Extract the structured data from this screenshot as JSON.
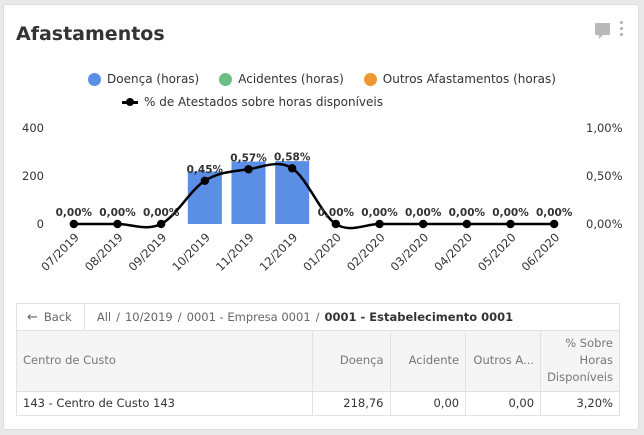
{
  "card": {
    "title": "Afastamentos"
  },
  "legend": {
    "items": [
      {
        "label": "Doença (horas)",
        "color": "#5b8fe6"
      },
      {
        "label": "Acidentes (horas)",
        "color": "#6cbf84"
      },
      {
        "label": "Outros Afastamentos (horas)",
        "color": "#f0982f"
      }
    ],
    "line_label": "% de Atestados sobre horas disponíveis"
  },
  "chart_data": {
    "type": "bar",
    "categories": [
      "07/2019",
      "08/2019",
      "09/2019",
      "10/2019",
      "11/2019",
      "12/2019",
      "01/2020",
      "02/2020",
      "03/2020",
      "04/2020",
      "05/2020",
      "06/2020"
    ],
    "series": [
      {
        "name": "Doença (horas)",
        "type": "bar",
        "color": "#5b8fe6",
        "axis": "left",
        "values": [
          0,
          0,
          0,
          218.76,
          260,
          262,
          0,
          0,
          0,
          0,
          0,
          0
        ]
      },
      {
        "name": "Acidentes (horas)",
        "type": "bar",
        "color": "#6cbf84",
        "axis": "left",
        "values": [
          0,
          0,
          0,
          0,
          0,
          0,
          0,
          0,
          0,
          0,
          0,
          0
        ]
      },
      {
        "name": "Outros Afastamentos (horas)",
        "type": "bar",
        "color": "#f0982f",
        "axis": "left",
        "values": [
          0,
          0,
          0,
          0,
          0,
          0,
          0,
          0,
          0,
          0,
          0,
          0
        ]
      },
      {
        "name": "% de Atestados sobre horas disponíveis",
        "type": "line",
        "color": "#000000",
        "axis": "right",
        "values": [
          0,
          0,
          0,
          0.45,
          0.57,
          0.58,
          0,
          0,
          0,
          0,
          0,
          0
        ],
        "labels": [
          "0,00%",
          "0,00%",
          "0,00%",
          "0,45%",
          "0,57%",
          "0,58%",
          "0,00%",
          "0,00%",
          "0,00%",
          "0,00%",
          "0,00%",
          "0,00%"
        ]
      }
    ],
    "y_left": {
      "ylim": [
        0,
        400
      ],
      "ticks": [
        0,
        200,
        400
      ],
      "tick_labels": [
        "0",
        "200",
        "400"
      ]
    },
    "y_right": {
      "ylim": [
        0,
        1
      ],
      "ticks": [
        0,
        0.5,
        1
      ],
      "tick_labels": [
        "0,00%",
        "0,50%",
        "1,00%"
      ]
    },
    "grid": false,
    "legend_position": "top"
  },
  "table": {
    "back_label": "Back",
    "breadcrumb": [
      "All",
      "10/2019",
      "0001 - Empresa 0001"
    ],
    "breadcrumb_current": "0001 - Estabelecimento 0001",
    "columns": [
      "Centro de Custo",
      "Doença",
      "Acidente",
      "Outros A...",
      "% Sobre Horas Disponíveis"
    ],
    "rows": [
      [
        "143 - Centro de Custo 143",
        "218,76",
        "0,00",
        "0,00",
        "3,20%"
      ]
    ]
  }
}
